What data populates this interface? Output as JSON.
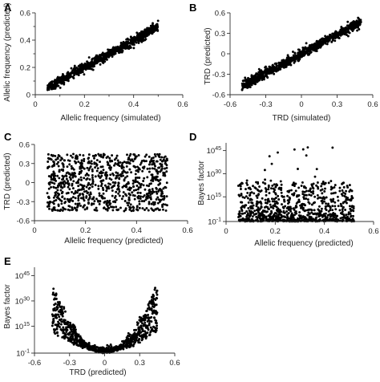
{
  "chart_data": [
    {
      "panel": "A",
      "type": "scatter",
      "xlabel": "Allelic frequency (simulated)",
      "ylabel": "Allelic frequency (predicted)",
      "xlim": [
        0,
        0.6
      ],
      "ylim": [
        0,
        0.6
      ],
      "xticks": [
        {
          "v": 0,
          "t": "0"
        },
        {
          "v": 0.2,
          "t": "0.2"
        },
        {
          "v": 0.4,
          "t": "0.4"
        },
        {
          "v": 0.6,
          "t": "0.6"
        }
      ],
      "yticks": [
        {
          "v": 0,
          "t": "0"
        },
        {
          "v": 0.2,
          "t": "0.2"
        },
        {
          "v": 0.4,
          "t": "0.4"
        },
        {
          "v": 0.6,
          "t": "0.6"
        }
      ],
      "x_ticks_minor": [
        0.1,
        0.3,
        0.5
      ],
      "y_ticks_minor": [
        0.1,
        0.3,
        0.5
      ],
      "pattern": "linear",
      "n_points": 900,
      "x_range": [
        0.05,
        0.5
      ],
      "slope": 1.0,
      "intercept": 0.0,
      "noise_sd": 0.018,
      "grid": false
    },
    {
      "panel": "B",
      "type": "scatter",
      "xlabel": "TRD (simulated)",
      "ylabel": "TRD (predicted)",
      "xlim": [
        -0.6,
        0.6
      ],
      "ylim": [
        -0.6,
        0.6
      ],
      "xticks": [
        {
          "v": -0.6,
          "t": "-0.6"
        },
        {
          "v": -0.3,
          "t": "-0.3"
        },
        {
          "v": 0,
          "t": "0"
        },
        {
          "v": 0.3,
          "t": "0.3"
        },
        {
          "v": 0.6,
          "t": "0.6"
        }
      ],
      "yticks": [
        {
          "v": -0.6,
          "t": "-0.6"
        },
        {
          "v": -0.3,
          "t": "-0.3"
        },
        {
          "v": 0,
          "t": "0"
        },
        {
          "v": 0.3,
          "t": "0.3"
        },
        {
          "v": 0.6,
          "t": "0.6"
        }
      ],
      "pattern": "linear",
      "n_points": 900,
      "x_range": [
        -0.5,
        0.5
      ],
      "slope": 0.95,
      "intercept": 0.0,
      "noise_sd": 0.035,
      "grid": false
    },
    {
      "panel": "C",
      "type": "scatter",
      "xlabel": "Allelic frequency (predicted)",
      "ylabel": "TRD (predicted)",
      "xlim": [
        0,
        0.6
      ],
      "ylim": [
        -0.6,
        0.6
      ],
      "xticks": [
        {
          "v": 0,
          "t": "0"
        },
        {
          "v": 0.2,
          "t": "0.2"
        },
        {
          "v": 0.4,
          "t": "0.4"
        },
        {
          "v": 0.6,
          "t": "0.6"
        }
      ],
      "yticks": [
        {
          "v": -0.6,
          "t": "-0.6"
        },
        {
          "v": -0.3,
          "t": "-0.3"
        },
        {
          "v": 0,
          "t": "0"
        },
        {
          "v": 0.3,
          "t": "0.3"
        },
        {
          "v": 0.6,
          "t": "0.6"
        }
      ],
      "pattern": "uniform",
      "n_points": 900,
      "x_range": [
        0.05,
        0.52
      ],
      "y_range": [
        -0.45,
        0.45
      ],
      "grid": false
    },
    {
      "panel": "D",
      "type": "scatter",
      "xlabel": "Allelic frequency (predicted)",
      "ylabel": "Bayes factor",
      "y_scale": "log10",
      "xlim": [
        0,
        0.6
      ],
      "ylim_log10": [
        -1,
        50
      ],
      "xticks": [
        {
          "v": 0,
          "t": "0"
        },
        {
          "v": 0.2,
          "t": "0.2"
        },
        {
          "v": 0.4,
          "t": "0.4"
        },
        {
          "v": 0.6,
          "t": "0.6"
        }
      ],
      "yticks": [
        {
          "v": -1,
          "base": "10",
          "exp": "-1"
        },
        {
          "v": 15,
          "base": "10",
          "exp": "15"
        },
        {
          "v": 30,
          "base": "10",
          "exp": "30"
        },
        {
          "v": 45,
          "base": "10",
          "exp": "45"
        }
      ],
      "pattern": "skewed_log",
      "n_points": 900,
      "x_range": [
        0.05,
        0.52
      ],
      "grid": false
    },
    {
      "panel": "E",
      "type": "scatter",
      "xlabel": "TRD (predicted)",
      "ylabel": "Bayes factor",
      "y_scale": "log10",
      "xlim": [
        -0.6,
        0.6
      ],
      "ylim_log10": [
        -1,
        50
      ],
      "xticks": [
        {
          "v": -0.6,
          "t": "-0.6"
        },
        {
          "v": -0.3,
          "t": "-0.3"
        },
        {
          "v": 0,
          "t": "0"
        },
        {
          "v": 0.3,
          "t": "0.3"
        },
        {
          "v": 0.6,
          "t": "0.6"
        }
      ],
      "yticks": [
        {
          "v": -1,
          "base": "10",
          "exp": "-1"
        },
        {
          "v": 15,
          "base": "10",
          "exp": "15"
        },
        {
          "v": 30,
          "base": "10",
          "exp": "30"
        },
        {
          "v": 45,
          "base": "10",
          "exp": "45"
        }
      ],
      "pattern": "u_shape",
      "n_points": 900,
      "x_range": [
        -0.45,
        0.45
      ],
      "grid": false
    }
  ]
}
